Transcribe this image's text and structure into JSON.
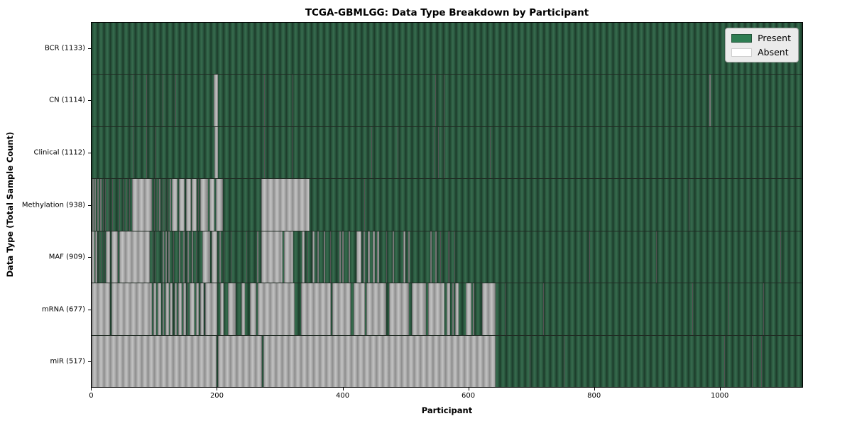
{
  "chart_data": {
    "type": "heatmap",
    "title": "TCGA-GBMLGG: Data Type Breakdown by Participant",
    "xlabel": "Participant",
    "ylabel": "Data Type (Total Sample Count)",
    "x_range": [
      0,
      1133
    ],
    "x_ticks": [
      0,
      200,
      400,
      600,
      800,
      1000
    ],
    "grid": false,
    "legend_position": "upper right",
    "legend": [
      {
        "label": "Present",
        "color": "#2e7d52"
      },
      {
        "label": "Absent",
        "color": "#ffffff"
      }
    ],
    "colors": {
      "present_base": "#2b5940",
      "present_light": "#376c4e",
      "present_dark": "#1c3b2a",
      "absent_base": "#acacac",
      "absent_light": "#c2c2c2",
      "absent_dark": "#8c8c8c",
      "legend_bg": "#ebebeb"
    },
    "rows": [
      {
        "name": "BCR",
        "label": "BCR (1133)",
        "present_count": 1133,
        "absent_ranges": []
      },
      {
        "name": "CN",
        "label": "CN (1114)",
        "present_count": 1114,
        "absent_ranges": [
          [
            66,
            67
          ],
          [
            81,
            82
          ],
          [
            87,
            88
          ],
          [
            113,
            114
          ],
          [
            134,
            135
          ],
          [
            195,
            201
          ],
          [
            275,
            276
          ],
          [
            320,
            321
          ],
          [
            548,
            549
          ],
          [
            561,
            562
          ],
          [
            985,
            987
          ]
        ]
      },
      {
        "name": "Clinical",
        "label": "Clinical (1112)",
        "present_count": 1112,
        "absent_ranges": [
          [
            66,
            67
          ],
          [
            81,
            82
          ],
          [
            87,
            88
          ],
          [
            102,
            103
          ],
          [
            196,
            201
          ],
          [
            275,
            276
          ],
          [
            319,
            320
          ],
          [
            446,
            447
          ],
          [
            488,
            489
          ],
          [
            546,
            547
          ],
          [
            552,
            553
          ],
          [
            561,
            562
          ],
          [
            635,
            636
          ],
          [
            1060,
            1061
          ]
        ]
      },
      {
        "name": "Methylation",
        "label": "Methylation (938)",
        "present_count": 938,
        "absent_ranges": [
          [
            1,
            3
          ],
          [
            5,
            7
          ],
          [
            9,
            11
          ],
          [
            14,
            16
          ],
          [
            18,
            19
          ],
          [
            22,
            23
          ],
          [
            27,
            28
          ],
          [
            33,
            34
          ],
          [
            38,
            39
          ],
          [
            44,
            45
          ],
          [
            50,
            51
          ],
          [
            56,
            57
          ],
          [
            60,
            61
          ],
          [
            64,
            96
          ],
          [
            100,
            101
          ],
          [
            104,
            105
          ],
          [
            108,
            110
          ],
          [
            113,
            114
          ],
          [
            117,
            118
          ],
          [
            121,
            122
          ],
          [
            125,
            127
          ],
          [
            128,
            137
          ],
          [
            139,
            148
          ],
          [
            150,
            158
          ],
          [
            160,
            168
          ],
          [
            170,
            171
          ],
          [
            173,
            186
          ],
          [
            188,
            196
          ],
          [
            198,
            209
          ],
          [
            271,
            347
          ],
          [
            435,
            436
          ],
          [
            952,
            953
          ]
        ]
      },
      {
        "name": "MAF",
        "label": "MAF (909)",
        "present_count": 909,
        "absent_ranges": [
          [
            0,
            4
          ],
          [
            6,
            9
          ],
          [
            11,
            12
          ],
          [
            15,
            16
          ],
          [
            19,
            20
          ],
          [
            23,
            30
          ],
          [
            32,
            42
          ],
          [
            44,
            93
          ],
          [
            97,
            98
          ],
          [
            101,
            102
          ],
          [
            113,
            115
          ],
          [
            118,
            120
          ],
          [
            122,
            124
          ],
          [
            130,
            131
          ],
          [
            139,
            142
          ],
          [
            146,
            148
          ],
          [
            153,
            155
          ],
          [
            160,
            162
          ],
          [
            166,
            167
          ],
          [
            177,
            189
          ],
          [
            191,
            200
          ],
          [
            204,
            206
          ],
          [
            210,
            212
          ],
          [
            222,
            223
          ],
          [
            247,
            248
          ],
          [
            264,
            266
          ],
          [
            271,
            305
          ],
          [
            307,
            322
          ],
          [
            335,
            340
          ],
          [
            344,
            345
          ],
          [
            352,
            355
          ],
          [
            360,
            362
          ],
          [
            370,
            372
          ],
          [
            380,
            382
          ],
          [
            395,
            397
          ],
          [
            400,
            402
          ],
          [
            410,
            412
          ],
          [
            422,
            430
          ],
          [
            433,
            436
          ],
          [
            440,
            444
          ],
          [
            448,
            452
          ],
          [
            455,
            458
          ],
          [
            470,
            471
          ],
          [
            480,
            482
          ],
          [
            497,
            500
          ],
          [
            505,
            507
          ],
          [
            540,
            542
          ],
          [
            548,
            550
          ],
          [
            556,
            557
          ],
          [
            568,
            569
          ],
          [
            571,
            572
          ],
          [
            578,
            579
          ],
          [
            794,
            795
          ],
          [
            900,
            901
          ],
          [
            1098,
            1099
          ]
        ]
      },
      {
        "name": "mRNA",
        "label": "mRNA (677)",
        "present_count": 677,
        "absent_ranges": [
          [
            0,
            29
          ],
          [
            32,
            96
          ],
          [
            98,
            103
          ],
          [
            105,
            111
          ],
          [
            113,
            116
          ],
          [
            118,
            123
          ],
          [
            125,
            129
          ],
          [
            132,
            136
          ],
          [
            138,
            144
          ],
          [
            146,
            151
          ],
          [
            153,
            154
          ],
          [
            156,
            164
          ],
          [
            166,
            171
          ],
          [
            173,
            179
          ],
          [
            181,
            200
          ],
          [
            205,
            211
          ],
          [
            217,
            230
          ],
          [
            239,
            245
          ],
          [
            252,
            263
          ],
          [
            265,
            324
          ],
          [
            334,
            381
          ],
          [
            384,
            413
          ],
          [
            418,
            436
          ],
          [
            438,
            470
          ],
          [
            474,
            506
          ],
          [
            510,
            533
          ],
          [
            536,
            562
          ],
          [
            566,
            572
          ],
          [
            575,
            577
          ],
          [
            580,
            585
          ],
          [
            597,
            605
          ],
          [
            608,
            610
          ],
          [
            622,
            644
          ],
          [
            659,
            660
          ],
          [
            720,
            721
          ],
          [
            958,
            959
          ],
          [
            1015,
            1016
          ],
          [
            1071,
            1072
          ]
        ]
      },
      {
        "name": "miR",
        "label": "miR (517)",
        "present_count": 517,
        "absent_ranges": [
          [
            0,
            199
          ],
          [
            201,
            272
          ],
          [
            274,
            644
          ],
          [
            698,
            699
          ],
          [
            753,
            754
          ],
          [
            991,
            992
          ],
          [
            1009,
            1010
          ],
          [
            1053,
            1054
          ],
          [
            1067,
            1068
          ]
        ]
      }
    ]
  }
}
